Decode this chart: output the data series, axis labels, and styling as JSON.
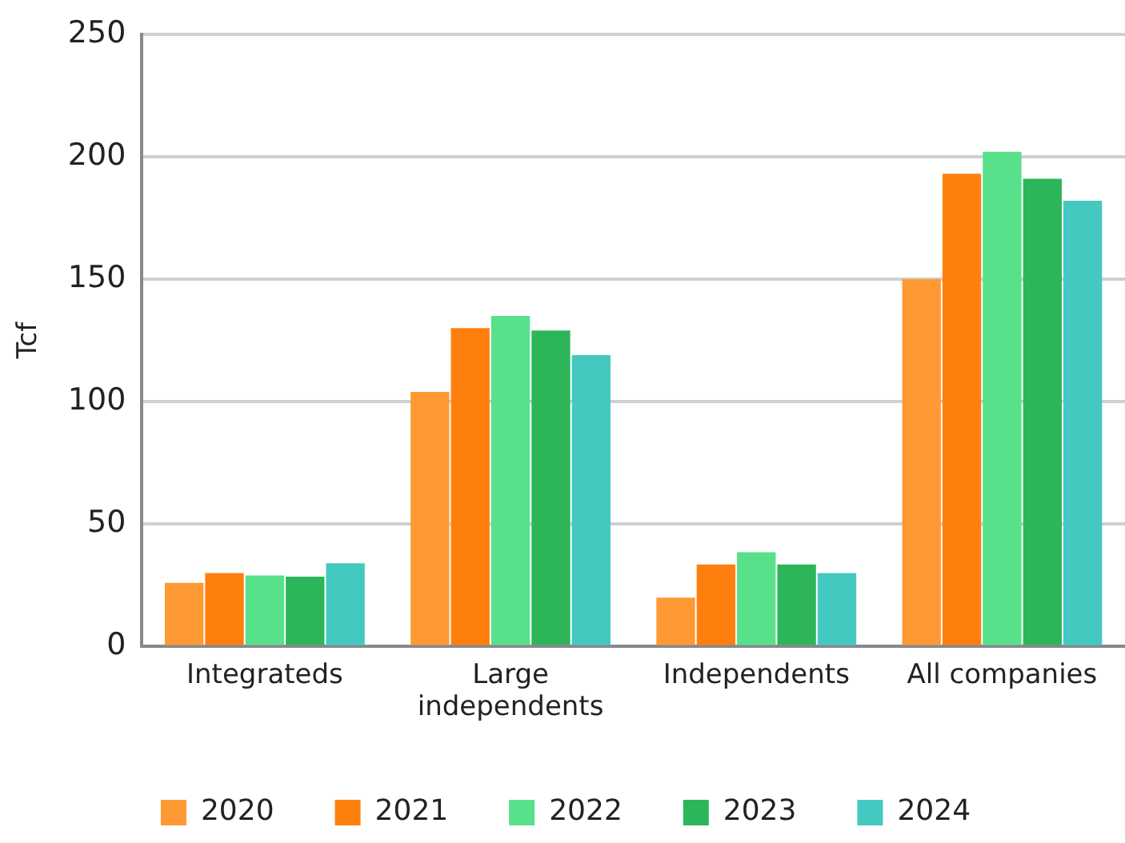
{
  "chart_data": {
    "type": "bar",
    "ylabel": "Tcf",
    "categories": [
      "Integrateds",
      "Large\nindependents",
      "Independents",
      "All companies"
    ],
    "series": [
      {
        "name": "2020",
        "color": "#ff9933",
        "values": [
          26,
          104,
          20,
          150
        ]
      },
      {
        "name": "2021",
        "color": "#ff7f0e",
        "values": [
          30,
          130,
          33.5,
          193
        ]
      },
      {
        "name": "2022",
        "color": "#58e08a",
        "values": [
          29,
          135,
          38.5,
          202
        ]
      },
      {
        "name": "2023",
        "color": "#2db55a",
        "values": [
          28.5,
          129,
          33.5,
          191
        ]
      },
      {
        "name": "2024",
        "color": "#44c9c1",
        "values": [
          34,
          119,
          30,
          182
        ]
      }
    ],
    "ylim": [
      0,
      250
    ],
    "yticks": [
      0,
      50,
      100,
      150,
      200,
      250
    ],
    "grid": "y",
    "legend": "bottom"
  }
}
